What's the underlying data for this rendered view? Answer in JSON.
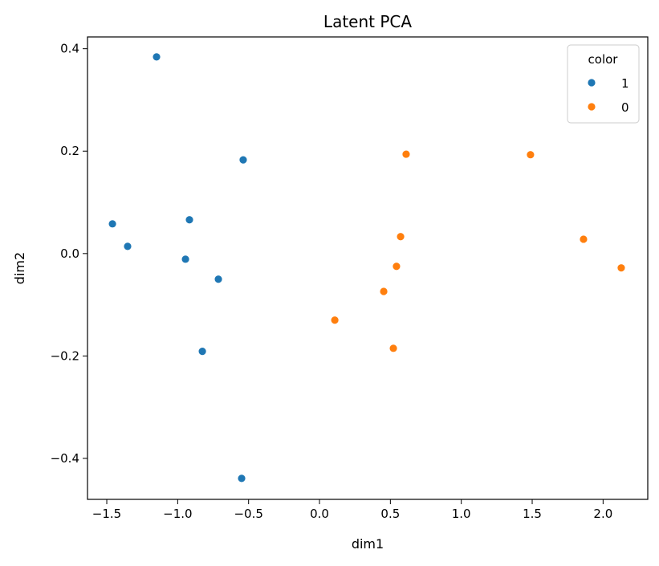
{
  "chart_data": {
    "type": "scatter",
    "title": "Latent PCA",
    "xlabel": "dim1",
    "ylabel": "dim2",
    "xlim": [
      -1.636,
      2.315
    ],
    "ylim": [
      -0.48,
      0.423
    ],
    "xticks": [
      -1.5,
      -1.0,
      -0.5,
      0.0,
      0.5,
      1.0,
      1.5,
      2.0
    ],
    "xtick_labels": [
      "−1.5",
      "−1.0",
      "−0.5",
      "0.0",
      "0.5",
      "1.0",
      "1.5",
      "2.0"
    ],
    "yticks": [
      0.4,
      0.2,
      0.0,
      -0.2,
      -0.4
    ],
    "ytick_labels": [
      "0.4",
      "0.2",
      "0.0",
      "−0.2",
      "−0.4"
    ],
    "grid": false,
    "legend": {
      "title": "color",
      "placement": "top-right"
    },
    "series": [
      {
        "name": "1",
        "color": "#1f77b4",
        "points": [
          [
            -1.149,
            0.384
          ],
          [
            -0.538,
            0.183
          ],
          [
            -1.46,
            0.058
          ],
          [
            -0.917,
            0.066
          ],
          [
            -1.353,
            0.014
          ],
          [
            -0.945,
            -0.011
          ],
          [
            -0.713,
            -0.05
          ],
          [
            -0.826,
            -0.191
          ],
          [
            -0.549,
            -0.439
          ]
        ]
      },
      {
        "name": "0",
        "color": "#ff7f0e",
        "points": [
          [
            0.611,
            0.194
          ],
          [
            1.488,
            0.193
          ],
          [
            0.572,
            0.033
          ],
          [
            1.862,
            0.028
          ],
          [
            0.543,
            -0.025
          ],
          [
            2.128,
            -0.028
          ],
          [
            0.453,
            -0.074
          ],
          [
            0.108,
            -0.13
          ],
          [
            0.521,
            -0.185
          ]
        ]
      }
    ]
  }
}
